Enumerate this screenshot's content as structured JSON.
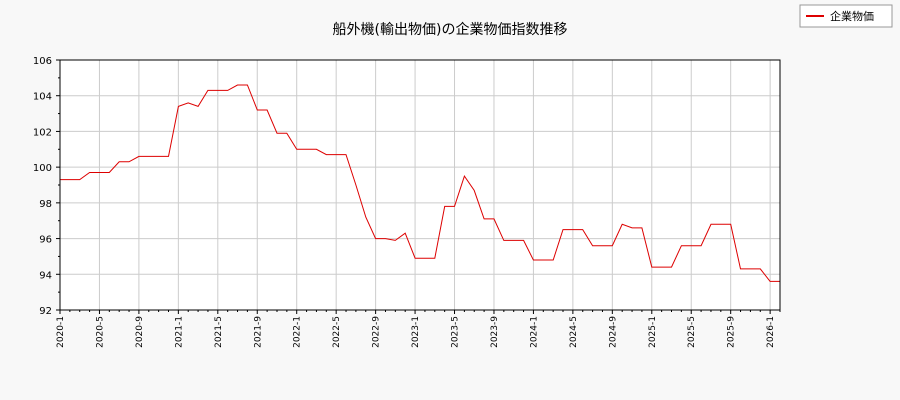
{
  "chart_data": {
    "type": "line",
    "title": "船外機(輸出物価)の企業物価指数推移",
    "xlabel": "",
    "ylabel": "",
    "ylim": [
      92,
      106
    ],
    "yticks": [
      "92",
      "94",
      "96",
      "98",
      "100",
      "102",
      "104",
      "106"
    ],
    "xticks": [
      "2020-1",
      "2020-5",
      "2020-9",
      "2021-1",
      "2021-5",
      "2021-9",
      "2022-1",
      "2022-5",
      "2022-9",
      "2023-1",
      "2023-5",
      "2023-9",
      "2024-1",
      "2024-5",
      "2024-9",
      "2025-1",
      "2025-5",
      "2025-9",
      "2026-1"
    ],
    "grid": true,
    "legend_position": "top-right",
    "series_color": "#dd0000",
    "series": [
      {
        "name": "企業物価",
        "values": [
          99.3,
          99.3,
          99.3,
          99.7,
          99.7,
          99.7,
          100.3,
          100.3,
          100.6,
          100.6,
          100.6,
          100.6,
          103.4,
          103.6,
          103.4,
          104.3,
          104.3,
          104.3,
          104.6,
          104.6,
          103.2,
          103.2,
          101.9,
          101.9,
          101.0,
          101.0,
          101.0,
          100.7,
          100.7,
          100.7,
          99.0,
          97.2,
          96.0,
          96.0,
          95.9,
          96.3,
          94.9,
          94.9,
          94.9,
          97.8,
          97.8,
          99.5,
          98.7,
          97.1,
          97.1,
          95.9,
          95.9,
          95.9,
          94.8,
          94.8,
          94.8,
          96.5,
          96.5,
          96.5,
          95.6,
          95.6,
          95.6,
          96.8,
          96.6,
          96.6,
          94.4,
          94.4,
          94.4,
          95.6,
          95.6,
          95.6,
          96.8,
          96.8,
          96.8,
          94.3,
          94.3,
          94.3,
          93.6,
          93.6
        ]
      }
    ]
  }
}
